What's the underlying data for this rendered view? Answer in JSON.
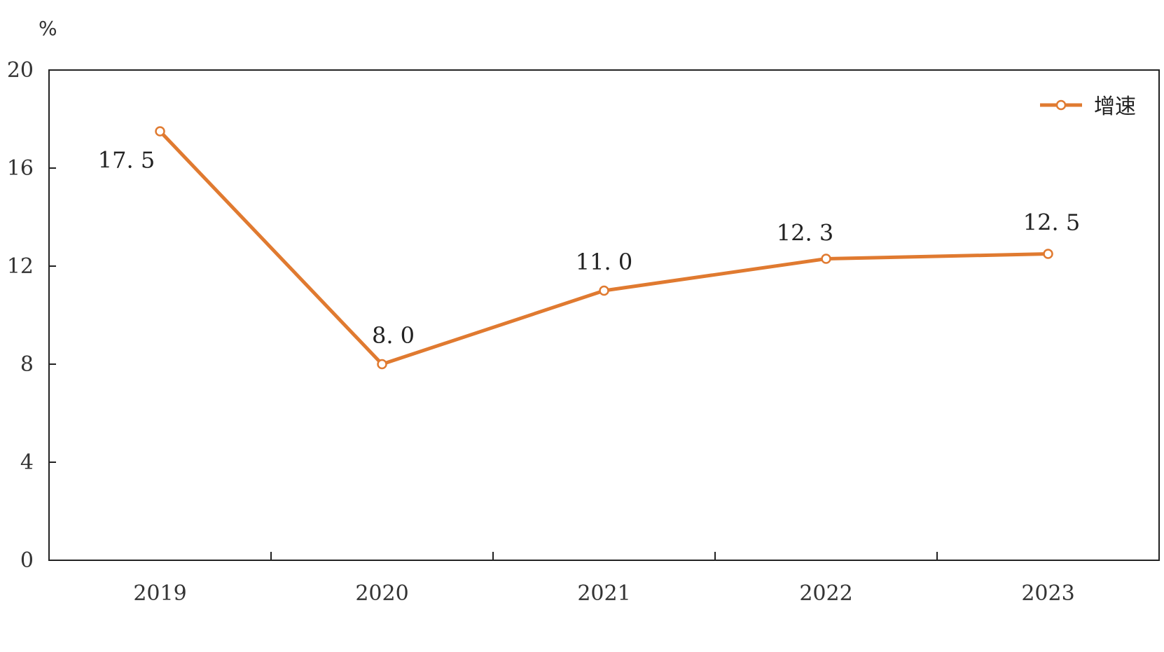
{
  "chart_data": {
    "type": "line",
    "y_unit": "%",
    "categories": [
      "2019",
      "2020",
      "2021",
      "2022",
      "2023"
    ],
    "series": [
      {
        "name": "增速",
        "values": [
          17.5,
          8.0,
          11.0,
          12.3,
          12.5
        ],
        "labels": [
          "17. 5",
          "8. 0",
          "11. 0",
          "12. 3",
          "12. 5"
        ],
        "color": "#E07A30"
      }
    ],
    "ylim": [
      0,
      20
    ],
    "yticks": [
      "0",
      "4",
      "8",
      "12",
      "16",
      "20"
    ],
    "legend_position": "top-right",
    "grid": false
  }
}
